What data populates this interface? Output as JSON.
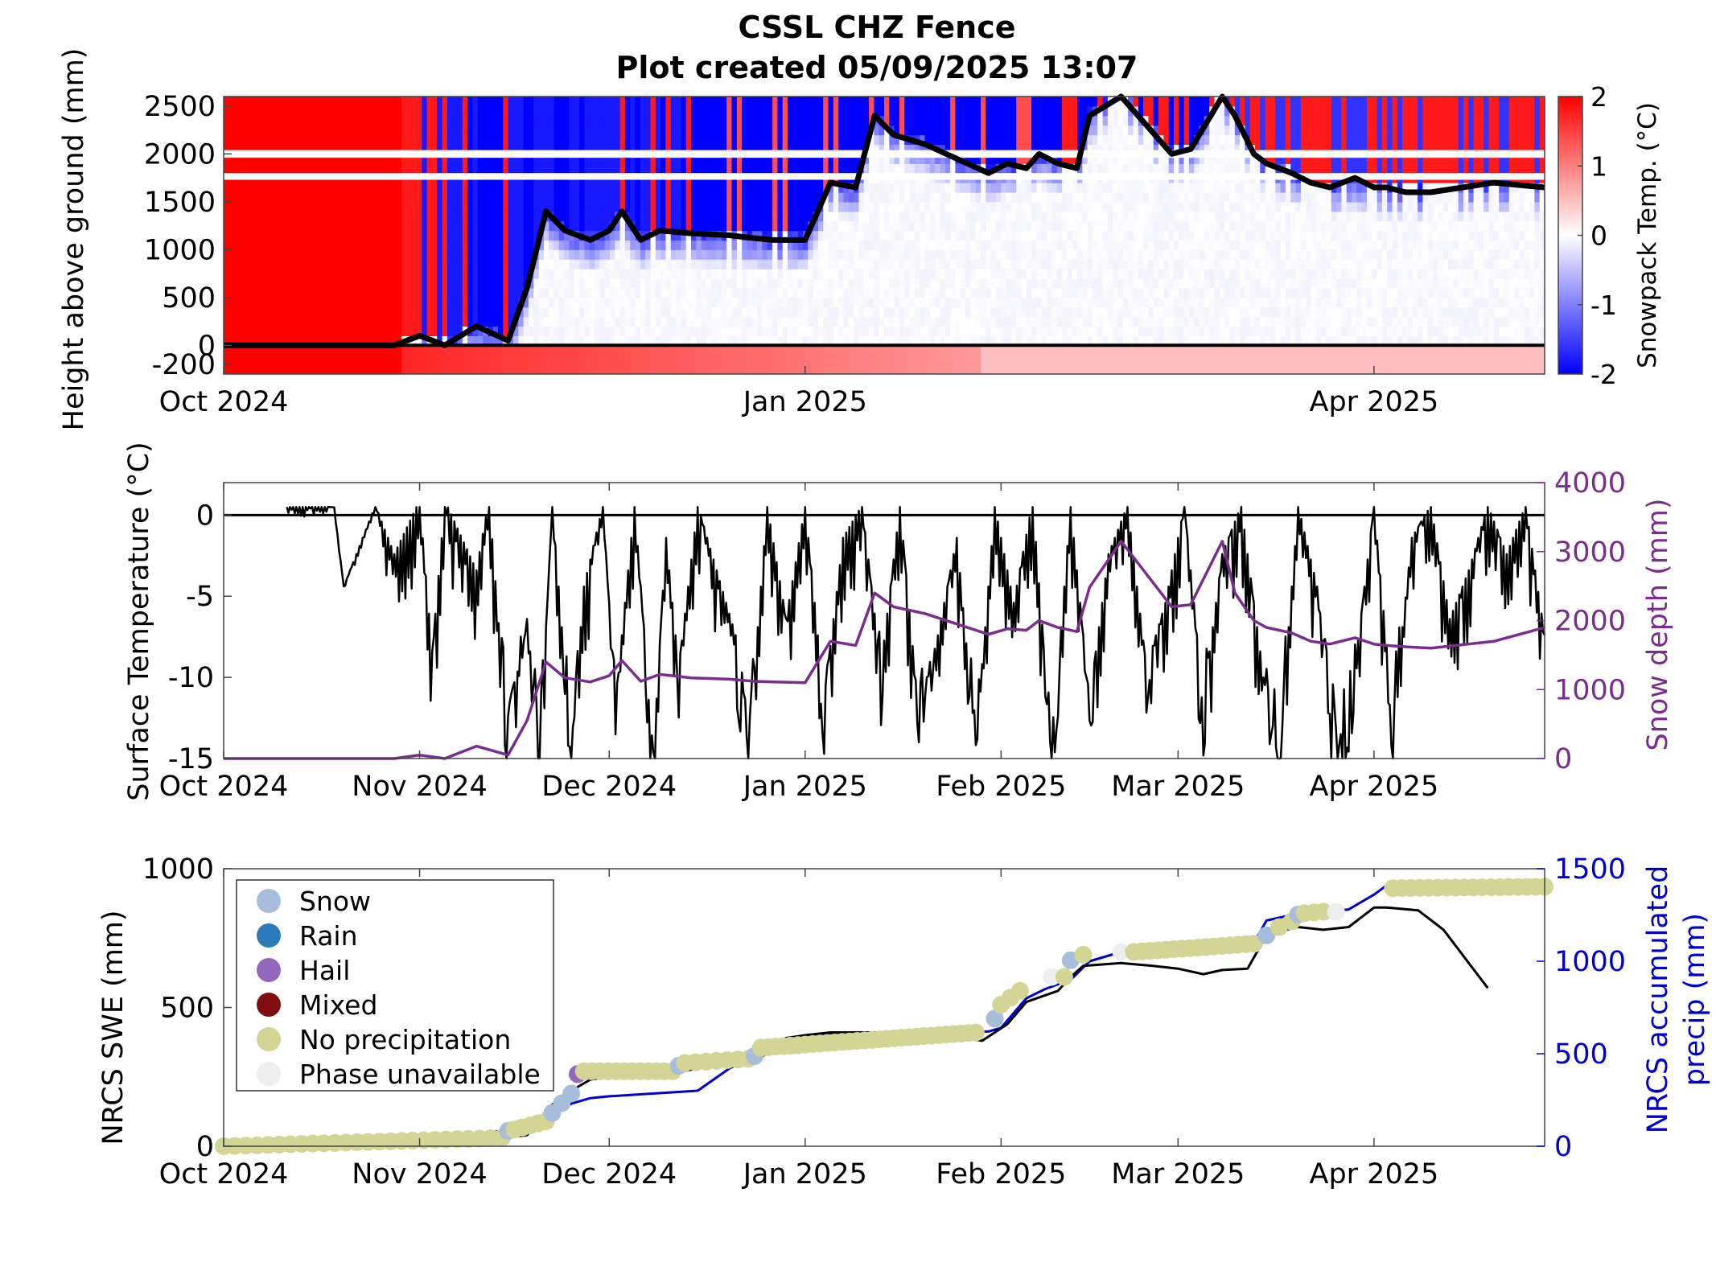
{
  "title": {
    "line1": "CSSL CHZ Fence",
    "line2": "Plot created 05/09/2025 13:07"
  },
  "colors": {
    "warm": "#ff0000",
    "cold": "#0000ff",
    "depth_line": "#000000",
    "surface_temp": "#000000",
    "snow_depth": "#7b2d8e",
    "swe": "#000000",
    "precip": "#0000cc",
    "snow": "#a6bddb",
    "rain": "#2b7bba",
    "hail": "#9467bd",
    "mixed": "#7f0f0f",
    "no_precip": "#d4d494",
    "phase_unavailable": "#eeeeee"
  },
  "chart_data": [
    {
      "type": "heatmap",
      "title": "",
      "ylabel": "Height above ground (mm)",
      "xlim": [
        "2024-10-01",
        "2025-04-28"
      ],
      "ylim": [
        -300,
        2600
      ],
      "yticks": [
        -200,
        0,
        500,
        1000,
        1500,
        2000,
        2500
      ],
      "xticks": [
        {
          "date": "2024-10-01",
          "label": "Oct 2024"
        },
        {
          "date": "2025-01-01",
          "label": "Jan 2025"
        },
        {
          "date": "2025-04-01",
          "label": "Apr 2025"
        }
      ],
      "colorbar": {
        "label": "Snowpack Temp. (°C)",
        "range": [
          -2,
          2
        ],
        "ticks": [
          "2",
          "1",
          "0",
          "-1",
          "-2"
        ]
      },
      "snow_depth_line": {
        "dates": [
          "2024-10-01",
          "2024-10-28",
          "2024-11-01",
          "2024-11-05",
          "2024-11-10",
          "2024-11-15",
          "2024-11-18",
          "2024-11-21",
          "2024-11-24",
          "2024-11-28",
          "2024-12-01",
          "2024-12-03",
          "2024-12-06",
          "2024-12-09",
          "2024-12-14",
          "2024-12-20",
          "2024-12-24",
          "2024-12-27",
          "2025-01-01",
          "2025-01-05",
          "2025-01-09",
          "2025-01-12",
          "2025-01-15",
          "2025-01-20",
          "2025-01-30",
          "2025-02-02",
          "2025-02-05",
          "2025-02-07",
          "2025-02-10",
          "2025-02-13",
          "2025-02-15",
          "2025-02-20",
          "2025-02-28",
          "2025-03-03",
          "2025-03-08",
          "2025-03-10",
          "2025-03-13",
          "2025-03-15",
          "2025-03-17",
          "2025-03-19",
          "2025-03-22",
          "2025-03-25",
          "2025-03-29",
          "2025-04-01",
          "2025-04-03",
          "2025-04-06",
          "2025-04-10",
          "2025-04-20",
          "2025-04-28"
        ],
        "values": [
          0,
          0,
          100,
          0,
          200,
          50,
          600,
          1400,
          1200,
          1100,
          1200,
          1400,
          1100,
          1200,
          1170,
          1150,
          1120,
          1100,
          1100,
          1700,
          1650,
          2400,
          2200,
          2100,
          1800,
          1900,
          1850,
          2000,
          1900,
          1850,
          2400,
          2650,
          2000,
          2050,
          2650,
          2400,
          2000,
          1900,
          1850,
          1800,
          1700,
          1650,
          1750,
          1650,
          1650,
          1600,
          1600,
          1700,
          1650
        ]
      }
    },
    {
      "type": "line",
      "title": "",
      "ylabel": "Surface Temperature (°C)",
      "ylabel_right": "Snow depth (mm)",
      "ylim": [
        -15,
        2
      ],
      "yticks": [
        0,
        -5,
        -10,
        -15
      ],
      "ylim_right": [
        0,
        4000
      ],
      "yticks_right": [
        4000,
        3000,
        2000,
        1000,
        0
      ],
      "xlim": [
        "2024-10-01",
        "2025-04-28"
      ],
      "xticks": [
        {
          "date": "2024-10-01",
          "label": "Oct 2024"
        },
        {
          "date": "2024-11-01",
          "label": "Nov 2024"
        },
        {
          "date": "2024-12-01",
          "label": "Dec 2024"
        },
        {
          "date": "2025-01-01",
          "label": "Jan 2025"
        },
        {
          "date": "2025-02-01",
          "label": "Feb 2025"
        },
        {
          "date": "2025-03-01",
          "label": "Mar 2025"
        },
        {
          "date": "2025-04-01",
          "label": "Apr 2025"
        }
      ],
      "series": [
        {
          "axis": "left",
          "x": [
            "2024-10-11",
            "2024-10-18",
            "2024-10-20",
            "2024-10-25",
            "2024-10-28",
            "2024-11-01",
            "2024-11-03",
            "2024-11-05",
            "2024-11-10",
            "2024-11-12",
            "2024-11-15",
            "2024-11-18",
            "2024-11-20",
            "2024-11-22",
            "2024-11-25",
            "2024-11-27",
            "2024-11-30",
            "2024-12-02",
            "2024-12-05",
            "2024-12-08",
            "2024-12-10",
            "2024-12-12",
            "2024-12-15",
            "2024-12-18",
            "2024-12-21",
            "2024-12-23",
            "2024-12-26",
            "2024-12-29",
            "2025-01-01",
            "2025-01-04",
            "2025-01-07",
            "2025-01-10",
            "2025-01-13",
            "2025-01-16",
            "2025-01-19",
            "2025-01-22",
            "2025-01-25",
            "2025-01-28",
            "2025-01-31",
            "2025-02-03",
            "2025-02-06",
            "2025-02-09",
            "2025-02-12",
            "2025-02-15",
            "2025-02-18",
            "2025-02-21",
            "2025-02-24",
            "2025-02-27",
            "2025-03-02",
            "2025-03-05",
            "2025-03-08",
            "2025-03-11",
            "2025-03-14",
            "2025-03-17",
            "2025-03-20",
            "2025-03-23",
            "2025-03-26",
            "2025-03-29",
            "2025-04-01",
            "2025-04-04",
            "2025-04-07",
            "2025-04-10",
            "2025-04-13",
            "2025-04-16",
            "2025-04-19",
            "2025-04-22",
            "2025-04-25",
            "2025-04-28"
          ],
          "values": [
            1.5,
            1.5,
            -5,
            0,
            -3,
            0.3,
            -9,
            0.3,
            -4,
            0.5,
            -15,
            -7,
            -15,
            0,
            -15,
            -5,
            0,
            -12,
            0,
            -15,
            -2,
            -10,
            0,
            -4,
            -8,
            -15,
            0,
            -7,
            0,
            -12,
            -2,
            0,
            -10,
            0,
            -13,
            -8,
            -2,
            -15,
            0,
            -6,
            0.3,
            -15,
            0,
            -12,
            -3,
            0,
            -10,
            -6,
            0,
            -12,
            -3,
            0,
            -9,
            -15,
            0,
            -5,
            -15,
            -10,
            0,
            -13,
            -2,
            0,
            -7,
            -4,
            0,
            -3,
            0,
            -8
          ]
        },
        {
          "axis": "right",
          "x": [
            "2024-10-01",
            "2024-10-28",
            "2024-11-01",
            "2024-11-05",
            "2024-11-10",
            "2024-11-15",
            "2024-11-18",
            "2024-11-21",
            "2024-11-24",
            "2024-11-28",
            "2024-12-01",
            "2024-12-03",
            "2024-12-06",
            "2024-12-09",
            "2024-12-14",
            "2024-12-20",
            "2024-12-24",
            "2024-12-27",
            "2025-01-01",
            "2025-01-05",
            "2025-01-09",
            "2025-01-12",
            "2025-01-15",
            "2025-01-20",
            "2025-01-30",
            "2025-02-02",
            "2025-02-05",
            "2025-02-07",
            "2025-02-10",
            "2025-02-13",
            "2025-02-15",
            "2025-02-20",
            "2025-02-28",
            "2025-03-03",
            "2025-03-08",
            "2025-03-10",
            "2025-03-13",
            "2025-03-15",
            "2025-03-17",
            "2025-03-19",
            "2025-03-22",
            "2025-03-25",
            "2025-03-29",
            "2025-04-01",
            "2025-04-03",
            "2025-04-06",
            "2025-04-10",
            "2025-04-20",
            "2025-04-28"
          ],
          "values": [
            0,
            0,
            50,
            0,
            180,
            50,
            550,
            1400,
            1170,
            1110,
            1200,
            1420,
            1120,
            1220,
            1170,
            1150,
            1120,
            1110,
            1100,
            1700,
            1640,
            2400,
            2200,
            2100,
            1800,
            1880,
            1860,
            2000,
            1900,
            1840,
            2480,
            3150,
            2200,
            2230,
            3150,
            2400,
            2000,
            1900,
            1860,
            1820,
            1700,
            1660,
            1750,
            1660,
            1640,
            1620,
            1600,
            1700,
            1900
          ]
        }
      ]
    },
    {
      "type": "line",
      "title": "",
      "ylabel": "NRCS SWE (mm)",
      "ylabel_right": "NRCS accumulated precip (mm)",
      "ylim": [
        0,
        1000
      ],
      "yticks": [
        1000,
        500,
        0
      ],
      "ylim_right": [
        0,
        1500
      ],
      "yticks_right": [
        1500,
        1000,
        500,
        0
      ],
      "xlim": [
        "2024-10-01",
        "2025-04-28"
      ],
      "xticks": [
        {
          "date": "2024-10-01",
          "label": "Oct 2024"
        },
        {
          "date": "2024-11-01",
          "label": "Nov 2024"
        },
        {
          "date": "2024-12-01",
          "label": "Dec 2024"
        },
        {
          "date": "2025-01-01",
          "label": "Jan 2025"
        },
        {
          "date": "2025-02-01",
          "label": "Feb 2025"
        },
        {
          "date": "2025-03-01",
          "label": "Mar 2025"
        },
        {
          "date": "2025-04-01",
          "label": "Apr 2025"
        }
      ],
      "legend": {
        "placement": "top-left",
        "entries": [
          {
            "key": "snow",
            "label": "Snow"
          },
          {
            "key": "rain",
            "label": "Rain"
          },
          {
            "key": "hail",
            "label": "Hail"
          },
          {
            "key": "mixed",
            "label": "Mixed"
          },
          {
            "key": "no_precip",
            "label": "No precipitation"
          },
          {
            "key": "phase_unavailable",
            "label": "Phase unavailable"
          }
        ]
      },
      "series": [
        {
          "axis": "left",
          "x": [
            "2024-10-01",
            "2024-10-15",
            "2024-11-01",
            "2024-11-05",
            "2024-11-08",
            "2024-11-10",
            "2024-11-14",
            "2024-11-18",
            "2024-11-20",
            "2024-11-22",
            "2024-11-25",
            "2024-11-28",
            "2024-12-01",
            "2024-12-10",
            "2024-12-15",
            "2024-12-18",
            "2024-12-20",
            "2024-12-25",
            "2024-12-29",
            "2025-01-01",
            "2025-01-05",
            "2025-01-20",
            "2025-01-25",
            "2025-01-29",
            "2025-02-02",
            "2025-02-05",
            "2025-02-10",
            "2025-02-12",
            "2025-02-14",
            "2025-02-20",
            "2025-02-25",
            "2025-03-01",
            "2025-03-05",
            "2025-03-08",
            "2025-03-12",
            "2025-03-15",
            "2025-03-18",
            "2025-03-20",
            "2025-03-24",
            "2025-03-28",
            "2025-04-01",
            "2025-04-03",
            "2025-04-08",
            "2025-04-12",
            "2025-04-16",
            "2025-04-19"
          ],
          "values": [
            0,
            0,
            10,
            0,
            20,
            10,
            30,
            40,
            100,
            150,
            200,
            240,
            250,
            260,
            280,
            310,
            315,
            320,
            390,
            400,
            410,
            410,
            395,
            380,
            440,
            520,
            560,
            610,
            650,
            660,
            650,
            640,
            620,
            635,
            640,
            760,
            780,
            790,
            780,
            790,
            860,
            860,
            850,
            780,
            660,
            570
          ]
        },
        {
          "axis": "right",
          "x": [
            "2024-10-01",
            "2024-10-15",
            "2024-11-01",
            "2024-11-10",
            "2024-11-18",
            "2024-11-22",
            "2024-11-25",
            "2024-11-28",
            "2024-12-01",
            "2024-12-15",
            "2024-12-20",
            "2024-12-29",
            "2025-01-05",
            "2025-01-30",
            "2025-02-01",
            "2025-02-05",
            "2025-02-08",
            "2025-02-12",
            "2025-02-15",
            "2025-02-20",
            "2025-03-10",
            "2025-03-13",
            "2025-03-15",
            "2025-03-19",
            "2025-03-22",
            "2025-03-28",
            "2025-04-01",
            "2025-04-03",
            "2025-04-18"
          ],
          "values": [
            0,
            10,
            30,
            60,
            110,
            170,
            230,
            260,
            270,
            300,
            420,
            580,
            610,
            620,
            640,
            800,
            850,
            900,
            1000,
            1050,
            1070,
            1100,
            1220,
            1250,
            1260,
            1280,
            1360,
            1410,
            1420
          ]
        }
      ],
      "phase_markers": [
        {
          "start": "2024-10-01",
          "end": "2024-11-14",
          "phase": "no_precip",
          "count": 26,
          "swe": [
            0,
            30
          ]
        },
        {
          "start": "2024-11-15",
          "end": "2024-11-15",
          "phase": "snow",
          "count": 1,
          "swe": [
            55,
            55
          ]
        },
        {
          "start": "2024-11-16",
          "end": "2024-11-21",
          "phase": "no_precip",
          "count": 5,
          "swe": [
            60,
            90
          ]
        },
        {
          "start": "2024-11-22",
          "end": "2024-11-25",
          "phase": "snow",
          "count": 3,
          "swe": [
            120,
            190
          ]
        },
        {
          "start": "2024-11-26",
          "end": "2024-11-26",
          "phase": "hail",
          "count": 1,
          "swe": [
            260,
            260
          ]
        },
        {
          "start": "2024-11-27",
          "end": "2024-12-11",
          "phase": "no_precip",
          "count": 12,
          "swe": [
            270,
            270
          ]
        },
        {
          "start": "2024-12-12",
          "end": "2024-12-12",
          "phase": "snow",
          "count": 1,
          "swe": [
            290,
            290
          ]
        },
        {
          "start": "2024-12-13",
          "end": "2024-12-23",
          "phase": "no_precip",
          "count": 7,
          "swe": [
            300,
            315
          ]
        },
        {
          "start": "2024-12-24",
          "end": "2024-12-24",
          "phase": "snow",
          "count": 1,
          "swe": [
            325,
            325
          ]
        },
        {
          "start": "2024-12-25",
          "end": "2025-01-28",
          "phase": "no_precip",
          "count": 30,
          "swe": [
            355,
            410
          ]
        },
        {
          "start": "2025-01-31",
          "end": "2025-01-31",
          "phase": "snow",
          "count": 1,
          "swe": [
            460,
            460
          ]
        },
        {
          "start": "2025-02-01",
          "end": "2025-02-04",
          "phase": "no_precip",
          "count": 3,
          "swe": [
            510,
            560
          ]
        },
        {
          "start": "2025-02-09",
          "end": "2025-02-10",
          "phase": "phase_unavailable",
          "count": 1,
          "swe": [
            610,
            610
          ]
        },
        {
          "start": "2025-02-11",
          "end": "2025-02-11",
          "phase": "no_precip",
          "count": 1,
          "swe": [
            610,
            610
          ]
        },
        {
          "start": "2025-02-12",
          "end": "2025-02-12",
          "phase": "snow",
          "count": 1,
          "swe": [
            670,
            670
          ]
        },
        {
          "start": "2025-02-14",
          "end": "2025-02-14",
          "phase": "no_precip",
          "count": 1,
          "swe": [
            690,
            690
          ]
        },
        {
          "start": "2025-02-20",
          "end": "2025-02-20",
          "phase": "phase_unavailable",
          "count": 1,
          "swe": [
            700,
            700
          ]
        },
        {
          "start": "2025-02-22",
          "end": "2025-03-13",
          "phase": "no_precip",
          "count": 16,
          "swe": [
            700,
            730
          ]
        },
        {
          "start": "2025-03-15",
          "end": "2025-03-15",
          "phase": "snow",
          "count": 1,
          "swe": [
            760,
            760
          ]
        },
        {
          "start": "2025-03-17",
          "end": "2025-03-19",
          "phase": "no_precip",
          "count": 2,
          "swe": [
            790,
            810
          ]
        },
        {
          "start": "2025-03-20",
          "end": "2025-03-20",
          "phase": "snow",
          "count": 1,
          "swe": [
            835,
            835
          ]
        },
        {
          "start": "2025-03-21",
          "end": "2025-03-24",
          "phase": "no_precip",
          "count": 3,
          "swe": [
            840,
            845
          ]
        },
        {
          "start": "2025-03-26",
          "end": "2025-03-26",
          "phase": "phase_unavailable",
          "count": 1,
          "swe": [
            845,
            845
          ]
        },
        {
          "start": "2025-04-04",
          "end": "2025-04-28",
          "phase": "no_precip",
          "count": 18,
          "swe": [
            930,
            935
          ]
        }
      ]
    }
  ]
}
